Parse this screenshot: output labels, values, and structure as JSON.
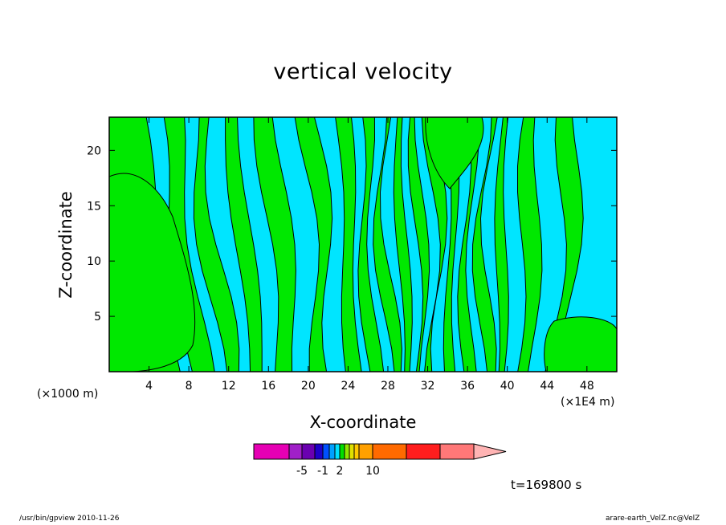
{
  "chart_data": {
    "type": "heatmap",
    "title": "vertical velocity",
    "xlabel": "X-coordinate",
    "ylabel": "Z-coordinate",
    "x_unit_left": "(×1000 m)",
    "x_unit_right": "(×1E4 m)",
    "xlim": [
      0,
      51
    ],
    "ylim": [
      0,
      23
    ],
    "x_ticks": [
      4,
      8,
      12,
      16,
      20,
      24,
      28,
      32,
      36,
      40,
      44,
      48
    ],
    "y_ticks": [
      5,
      10,
      15,
      20
    ],
    "fill_colors": {
      "negative": "#00e5ff",
      "positive": "#00e800"
    },
    "upward_bands_x": [
      [
        2,
        7
      ],
      [
        8,
        10
      ],
      [
        11,
        12.5
      ],
      [
        14,
        15.5
      ],
      [
        17,
        19
      ],
      [
        21,
        22.5
      ],
      [
        24,
        25.3
      ],
      [
        26,
        27
      ],
      [
        27.8,
        28.6
      ],
      [
        29.4,
        30.2
      ],
      [
        31,
        31.7
      ],
      [
        32.5,
        33.2
      ],
      [
        34,
        34.8
      ],
      [
        35.6,
        36.4
      ],
      [
        37.2,
        38
      ],
      [
        38.8,
        39.6
      ],
      [
        41,
        42.5
      ],
      [
        44.5,
        46
      ]
    ],
    "colorbar": {
      "colors": [
        "#e600b4",
        "#a020c8",
        "#6a00b0",
        "#1e00c8",
        "#0050ff",
        "#00a0ff",
        "#00e0ff",
        "#00e000",
        "#90e800",
        "#e0e000",
        "#ffc800",
        "#ffa000",
        "#ff6a00",
        "#ff1e1e",
        "#ff7878",
        "#ffb4b4"
      ],
      "labels": [
        "-5",
        "-1",
        "2",
        "10"
      ]
    },
    "time_label": "t=169800 s"
  },
  "footer": {
    "left": "/usr/bin/gpview  2010-11-26",
    "right": "arare-earth_VelZ.nc@VelZ"
  }
}
